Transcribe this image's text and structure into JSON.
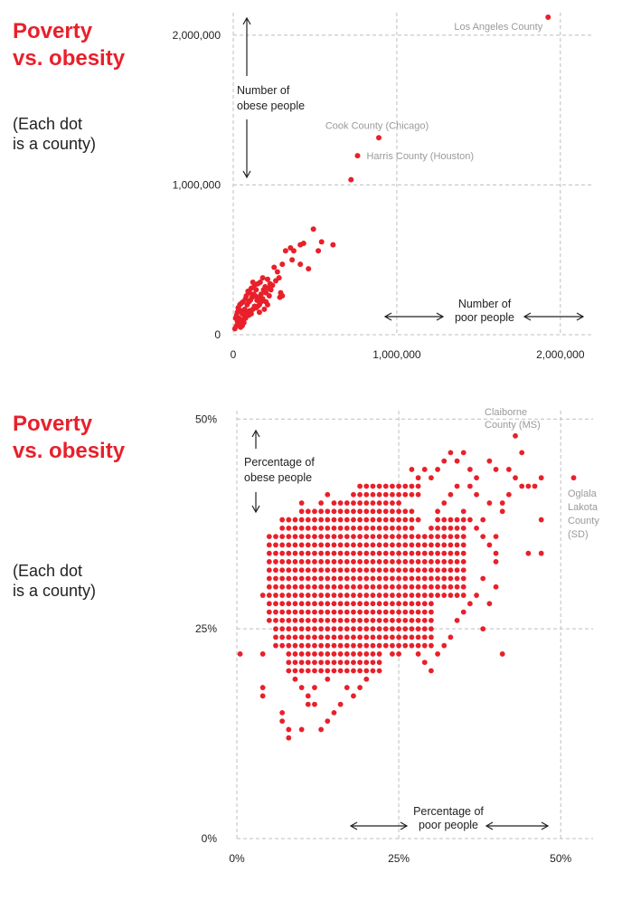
{
  "colors": {
    "accent": "#e8202a",
    "grid": "#bfbfbf",
    "annotation": "#9a9a9a",
    "text": "#222222"
  },
  "chart_data": [
    {
      "type": "scatter",
      "title": "Poverty vs. obesity",
      "title_lines": [
        "Poverty",
        "vs. obesity"
      ],
      "note_lines": [
        "(Each dot",
        "is a county)"
      ],
      "xlabel_lines": [
        "Number of",
        "poor people"
      ],
      "ylabel_lines": [
        "Number of",
        "obese people"
      ],
      "xlim": [
        0,
        2200000
      ],
      "ylim": [
        0,
        2150000
      ],
      "xticks": [
        0,
        1000000,
        2000000
      ],
      "yticks": [
        0,
        1000000,
        2000000
      ],
      "xtick_labels": [
        "0",
        "1,000,000",
        "2,000,000"
      ],
      "ytick_labels": [
        "0",
        "1,000,000",
        "2,000,000"
      ],
      "grid": true,
      "annotations": [
        {
          "text": "Los Angeles County",
          "x": 1925000,
          "y": 2120000
        },
        {
          "text": "Cook County (Chicago)",
          "x": 890000,
          "y": 1315000
        },
        {
          "text": "Harris County (Houston)",
          "x": 760000,
          "y": 1195000
        }
      ],
      "points": [
        [
          1925000,
          2120000
        ],
        [
          890000,
          1315000
        ],
        [
          760000,
          1195000
        ],
        [
          720000,
          1035000
        ],
        [
          490000,
          705000
        ],
        [
          610000,
          600000
        ],
        [
          540000,
          620000
        ],
        [
          430000,
          610000
        ],
        [
          410000,
          600000
        ],
        [
          350000,
          580000
        ],
        [
          370000,
          560000
        ],
        [
          320000,
          560000
        ],
        [
          460000,
          440000
        ],
        [
          520000,
          560000
        ],
        [
          410000,
          470000
        ],
        [
          360000,
          500000
        ],
        [
          300000,
          470000
        ],
        [
          270000,
          420000
        ],
        [
          280000,
          380000
        ],
        [
          250000,
          450000
        ],
        [
          225000,
          340000
        ],
        [
          210000,
          370000
        ],
        [
          180000,
          380000
        ],
        [
          165000,
          350000
        ],
        [
          150000,
          340000
        ],
        [
          130000,
          330000
        ],
        [
          120000,
          350000
        ],
        [
          140000,
          300000
        ],
        [
          110000,
          310000
        ],
        [
          100000,
          280000
        ],
        [
          90000,
          290000
        ],
        [
          80000,
          260000
        ],
        [
          75000,
          240000
        ],
        [
          60000,
          220000
        ],
        [
          50000,
          210000
        ],
        [
          40000,
          200000
        ],
        [
          35000,
          170000
        ],
        [
          30000,
          180000
        ],
        [
          25000,
          150000
        ],
        [
          20000,
          130000
        ],
        [
          15000,
          110000
        ],
        [
          45000,
          160000
        ],
        [
          55000,
          140000
        ],
        [
          65000,
          150000
        ],
        [
          70000,
          170000
        ],
        [
          85000,
          200000
        ],
        [
          95000,
          220000
        ],
        [
          105000,
          230000
        ],
        [
          115000,
          250000
        ],
        [
          125000,
          270000
        ],
        [
          135000,
          260000
        ],
        [
          145000,
          230000
        ],
        [
          155000,
          250000
        ],
        [
          170000,
          270000
        ],
        [
          185000,
          300000
        ],
        [
          195000,
          320000
        ],
        [
          200000,
          280000
        ],
        [
          215000,
          310000
        ],
        [
          230000,
          300000
        ],
        [
          240000,
          330000
        ],
        [
          260000,
          360000
        ],
        [
          290000,
          280000
        ],
        [
          300000,
          260000
        ],
        [
          285000,
          250000
        ],
        [
          170000,
          220000
        ],
        [
          160000,
          200000
        ],
        [
          150000,
          190000
        ],
        [
          140000,
          180000
        ],
        [
          120000,
          170000
        ],
        [
          100000,
          160000
        ],
        [
          90000,
          150000
        ],
        [
          80000,
          140000
        ],
        [
          70000,
          120000
        ],
        [
          60000,
          100000
        ],
        [
          50000,
          90000
        ],
        [
          40000,
          80000
        ],
        [
          30000,
          70000
        ],
        [
          20000,
          60000
        ],
        [
          10000,
          40000
        ],
        [
          45000,
          50000
        ],
        [
          55000,
          60000
        ],
        [
          65000,
          80000
        ],
        [
          35000,
          110000
        ],
        [
          25000,
          90000
        ],
        [
          75000,
          110000
        ],
        [
          95000,
          130000
        ],
        [
          110000,
          140000
        ],
        [
          130000,
          190000
        ],
        [
          180000,
          240000
        ],
        [
          200000,
          220000
        ],
        [
          220000,
          260000
        ],
        [
          190000,
          170000
        ],
        [
          160000,
          150000
        ],
        [
          210000,
          200000
        ]
      ]
    },
    {
      "type": "scatter",
      "title": "Poverty vs. obesity",
      "title_lines": [
        "Poverty",
        "vs. obesity"
      ],
      "note_lines": [
        "(Each dot",
        "is a county)"
      ],
      "xlabel_lines": [
        "Percentage of",
        "poor people"
      ],
      "ylabel_lines": [
        "Percentage of",
        "obese people"
      ],
      "xlim": [
        0,
        55
      ],
      "ylim": [
        0,
        51
      ],
      "xticks": [
        0,
        25,
        50
      ],
      "yticks": [
        0,
        25,
        50
      ],
      "xtick_labels": [
        "0%",
        "25%",
        "50%"
      ],
      "ytick_labels": [
        "0%",
        "25%",
        "50%"
      ],
      "grid": true,
      "annotations": [
        {
          "lines": [
            "Claiborne",
            "County (MS)"
          ]
        },
        {
          "lines": [
            "Oglala",
            "Lakota",
            "County",
            "(SD)"
          ]
        }
      ],
      "grid_cells": [
        {
          "x": [
            5,
            30
          ],
          "y": [
            26,
            36
          ]
        },
        {
          "x": [
            6,
            30
          ],
          "y": [
            23,
            26
          ]
        },
        {
          "x": [
            7,
            27
          ],
          "y": [
            37,
            38
          ]
        },
        {
          "x": [
            10,
            26
          ],
          "y": [
            39,
            39
          ]
        },
        {
          "x": [
            15,
            25
          ],
          "y": [
            40,
            40
          ]
        },
        {
          "x": [
            19,
            28
          ],
          "y": [
            41,
            42
          ]
        },
        {
          "x": [
            8,
            22
          ],
          "y": [
            20,
            22
          ]
        },
        {
          "x": [
            31,
            35
          ],
          "y": [
            29,
            38
          ]
        }
      ],
      "points": [
        [
          52,
          43
        ],
        [
          43,
          48
        ],
        [
          44,
          46
        ],
        [
          47,
          43
        ],
        [
          47,
          38
        ],
        [
          47,
          34
        ],
        [
          45,
          34
        ],
        [
          40,
          34
        ],
        [
          41,
          22
        ],
        [
          38,
          25
        ],
        [
          39,
          28
        ],
        [
          40,
          30
        ],
        [
          40,
          36
        ],
        [
          39,
          40
        ],
        [
          41,
          40
        ],
        [
          42,
          41
        ],
        [
          43,
          43
        ],
        [
          42,
          44
        ],
        [
          45,
          42
        ],
        [
          46,
          42
        ],
        [
          44,
          42
        ],
        [
          39,
          45
        ],
        [
          40,
          44
        ],
        [
          41,
          39
        ],
        [
          38,
          38
        ],
        [
          37,
          41
        ],
        [
          36,
          42
        ],
        [
          37,
          43
        ],
        [
          36,
          44
        ],
        [
          35,
          46
        ],
        [
          34,
          45
        ],
        [
          33,
          46
        ],
        [
          32,
          45
        ],
        [
          31,
          44
        ],
        [
          30,
          43
        ],
        [
          29,
          44
        ],
        [
          28,
          43
        ],
        [
          27,
          44
        ],
        [
          26,
          42
        ],
        [
          25,
          42
        ],
        [
          24,
          41
        ],
        [
          23,
          40
        ],
        [
          22,
          41
        ],
        [
          21,
          40
        ],
        [
          20,
          41
        ],
        [
          19,
          42
        ],
        [
          18,
          41
        ],
        [
          17,
          40
        ],
        [
          16,
          40
        ],
        [
          14,
          41
        ],
        [
          13,
          40
        ],
        [
          12,
          39
        ],
        [
          11,
          39
        ],
        [
          10,
          40
        ],
        [
          6,
          35
        ],
        [
          5,
          34
        ],
        [
          4,
          29
        ],
        [
          4,
          22
        ],
        [
          4,
          18
        ],
        [
          4,
          17
        ],
        [
          5,
          27
        ],
        [
          6,
          25
        ],
        [
          0.5,
          22
        ],
        [
          7,
          15
        ],
        [
          7,
          14
        ],
        [
          8,
          13
        ],
        [
          8,
          12
        ],
        [
          10,
          13
        ],
        [
          11,
          16
        ],
        [
          12,
          16
        ],
        [
          13,
          13
        ],
        [
          14,
          14
        ],
        [
          15,
          15
        ],
        [
          16,
          16
        ],
        [
          17,
          18
        ],
        [
          18,
          17
        ],
        [
          19,
          18
        ],
        [
          20,
          19
        ],
        [
          22,
          23
        ],
        [
          24,
          22
        ],
        [
          25,
          22
        ],
        [
          27,
          23
        ],
        [
          28,
          22
        ],
        [
          29,
          21
        ],
        [
          30,
          20
        ],
        [
          31,
          22
        ],
        [
          32,
          23
        ],
        [
          33,
          24
        ],
        [
          34,
          26
        ],
        [
          35,
          27
        ],
        [
          36,
          28
        ],
        [
          37,
          29
        ],
        [
          38,
          31
        ],
        [
          33,
          32
        ],
        [
          34,
          33
        ],
        [
          32,
          34
        ],
        [
          31,
          35
        ],
        [
          30,
          37
        ],
        [
          29,
          36
        ],
        [
          28,
          38
        ],
        [
          27,
          39
        ],
        [
          26,
          38
        ],
        [
          25,
          37
        ],
        [
          9,
          19
        ],
        [
          10,
          18
        ],
        [
          11,
          17
        ],
        [
          12,
          18
        ],
        [
          13,
          20
        ],
        [
          14,
          19
        ],
        [
          15,
          21
        ],
        [
          16,
          22
        ],
        [
          17,
          21
        ],
        [
          18,
          20
        ],
        [
          19,
          22
        ],
        [
          20,
          23
        ],
        [
          21,
          22
        ],
        [
          6,
          30
        ],
        [
          5,
          28
        ],
        [
          7,
          32
        ],
        [
          8,
          31
        ],
        [
          9,
          33
        ],
        [
          10,
          34
        ],
        [
          11,
          35
        ],
        [
          12,
          36
        ],
        [
          13,
          37
        ],
        [
          14,
          38
        ],
        [
          15,
          39
        ],
        [
          16,
          38
        ],
        [
          17,
          39
        ],
        [
          18,
          38
        ],
        [
          31,
          39
        ],
        [
          32,
          40
        ],
        [
          33,
          41
        ],
        [
          34,
          42
        ],
        [
          35,
          39
        ],
        [
          36,
          38
        ],
        [
          37,
          37
        ],
        [
          38,
          36
        ],
        [
          39,
          35
        ],
        [
          40,
          33
        ]
      ]
    }
  ]
}
